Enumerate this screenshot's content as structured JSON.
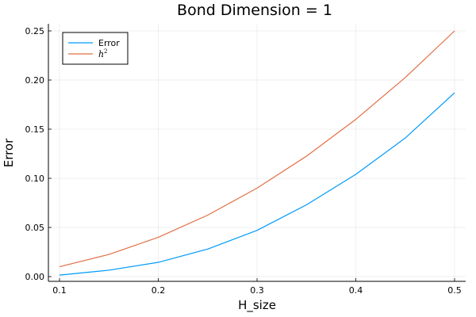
{
  "chart_data": {
    "type": "line",
    "title": "Bond Dimension = 1",
    "xlabel": "H_size",
    "ylabel": "Error",
    "xlim": [
      0.1,
      0.5
    ],
    "ylim": [
      0.0,
      0.25
    ],
    "xticks": [
      0.1,
      0.2,
      0.3,
      0.4,
      0.5
    ],
    "xtick_labels": [
      "0.1",
      "0.2",
      "0.3",
      "0.4",
      "0.5"
    ],
    "yticks": [
      0.0,
      0.05,
      0.1,
      0.15,
      0.2,
      0.25
    ],
    "ytick_labels": [
      "0.00",
      "0.05",
      "0.10",
      "0.15",
      "0.20",
      "0.25"
    ],
    "grid": true,
    "legend_position": "top-left",
    "series": [
      {
        "name": "Error",
        "color": "#009AFA",
        "x": [
          0.1,
          0.15,
          0.2,
          0.25,
          0.3,
          0.35,
          0.4,
          0.45,
          0.5
        ],
        "y": [
          0.0015,
          0.0065,
          0.0145,
          0.028,
          0.047,
          0.073,
          0.104,
          0.141,
          0.187
        ]
      },
      {
        "name": "h",
        "name_superscript": "2",
        "color": "#E26F46",
        "x": [
          0.1,
          0.15,
          0.2,
          0.25,
          0.3,
          0.35,
          0.4,
          0.45,
          0.5
        ],
        "y": [
          0.01,
          0.0225,
          0.04,
          0.0625,
          0.09,
          0.1225,
          0.16,
          0.2025,
          0.25
        ]
      }
    ]
  }
}
